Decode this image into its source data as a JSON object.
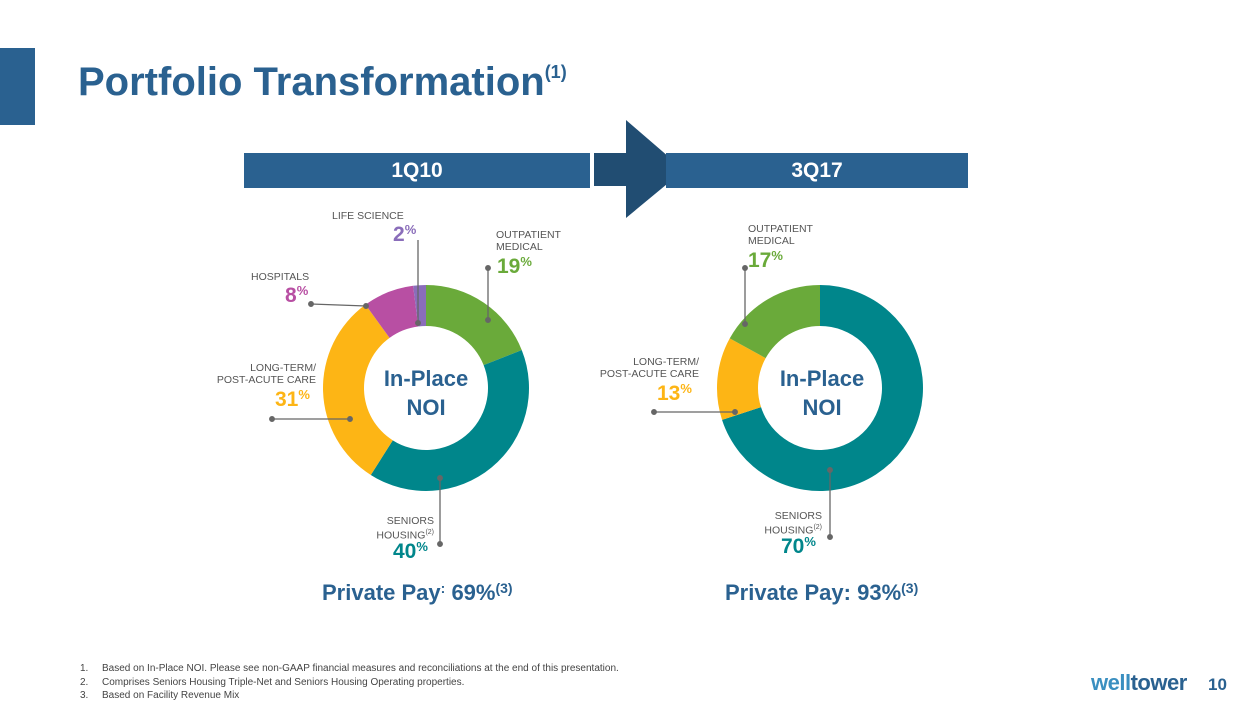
{
  "title": "Portfolio Transformation",
  "title_sup": "(1)",
  "periods": [
    "1Q10",
    "3Q17"
  ],
  "center_label": [
    "In-Place",
    "NOI"
  ],
  "colors": {
    "seniors": "#00868b",
    "ltc": "#fdb515",
    "outpatient": "#6aaa3a",
    "hospitals": "#b84fa3",
    "life": "#8a6dba",
    "brand": "#2a6190"
  },
  "chart_data": [
    {
      "type": "pie",
      "title": "1Q10",
      "donut": true,
      "slices": [
        {
          "name": "OUTPATIENT MEDICAL",
          "value": 19,
          "pct": "19",
          "color": "#6aaa3a"
        },
        {
          "name": "SENIORS HOUSING",
          "value": 40,
          "pct": "40",
          "color": "#00868b"
        },
        {
          "name": "LONG-TERM/ POST-ACUTE CARE",
          "value": 31,
          "pct": "31",
          "color": "#fdb515"
        },
        {
          "name": "HOSPITALS",
          "value": 8,
          "pct": "8",
          "color": "#b84fa3"
        },
        {
          "name": "LIFE SCIENCE",
          "value": 2,
          "pct": "2",
          "color": "#8a6dba"
        }
      ]
    },
    {
      "type": "pie",
      "title": "3Q17",
      "donut": true,
      "slices": [
        {
          "name": "SENIORS HOUSING",
          "value": 70,
          "pct": "70",
          "color": "#00868b"
        },
        {
          "name": "LONG-TERM/ POST-ACUTE CARE",
          "value": 13,
          "pct": "13",
          "color": "#fdb515"
        },
        {
          "name": "OUTPATIENT MEDICAL",
          "value": 17,
          "pct": "17",
          "color": "#6aaa3a"
        }
      ]
    }
  ],
  "labels": {
    "life": "LIFE SCIENCE",
    "outpatient1": "OUTPATIENT",
    "outpatient2": "MEDICAL",
    "hospitals": "HOSPITALS",
    "ltc1": "LONG-TERM/",
    "ltc2": "POST-ACUTE CARE",
    "seniors1": "SENIORS",
    "seniors2": "HOUSING",
    "sup2": "(2)",
    "pct_sign": "%"
  },
  "private_pay": [
    {
      "label": "Private Pay",
      "sep": ":",
      "value": "69%",
      "sup": "(3)"
    },
    {
      "label": "Private Pay",
      "sep": ":",
      "value": "93%",
      "sup": "(3)"
    }
  ],
  "footnotes": [
    {
      "n": "1.",
      "text": "Based on In-Place NOI. Please see non-GAAP financial measures and reconciliations at the end of this presentation."
    },
    {
      "n": "2.",
      "text": "Comprises Seniors Housing Triple-Net and Seniors Housing Operating properties."
    },
    {
      "n": "3.",
      "text": "Based on Facility Revenue Mix"
    }
  ],
  "logo": {
    "a": "well",
    "b": "tower"
  },
  "page_number": "10"
}
